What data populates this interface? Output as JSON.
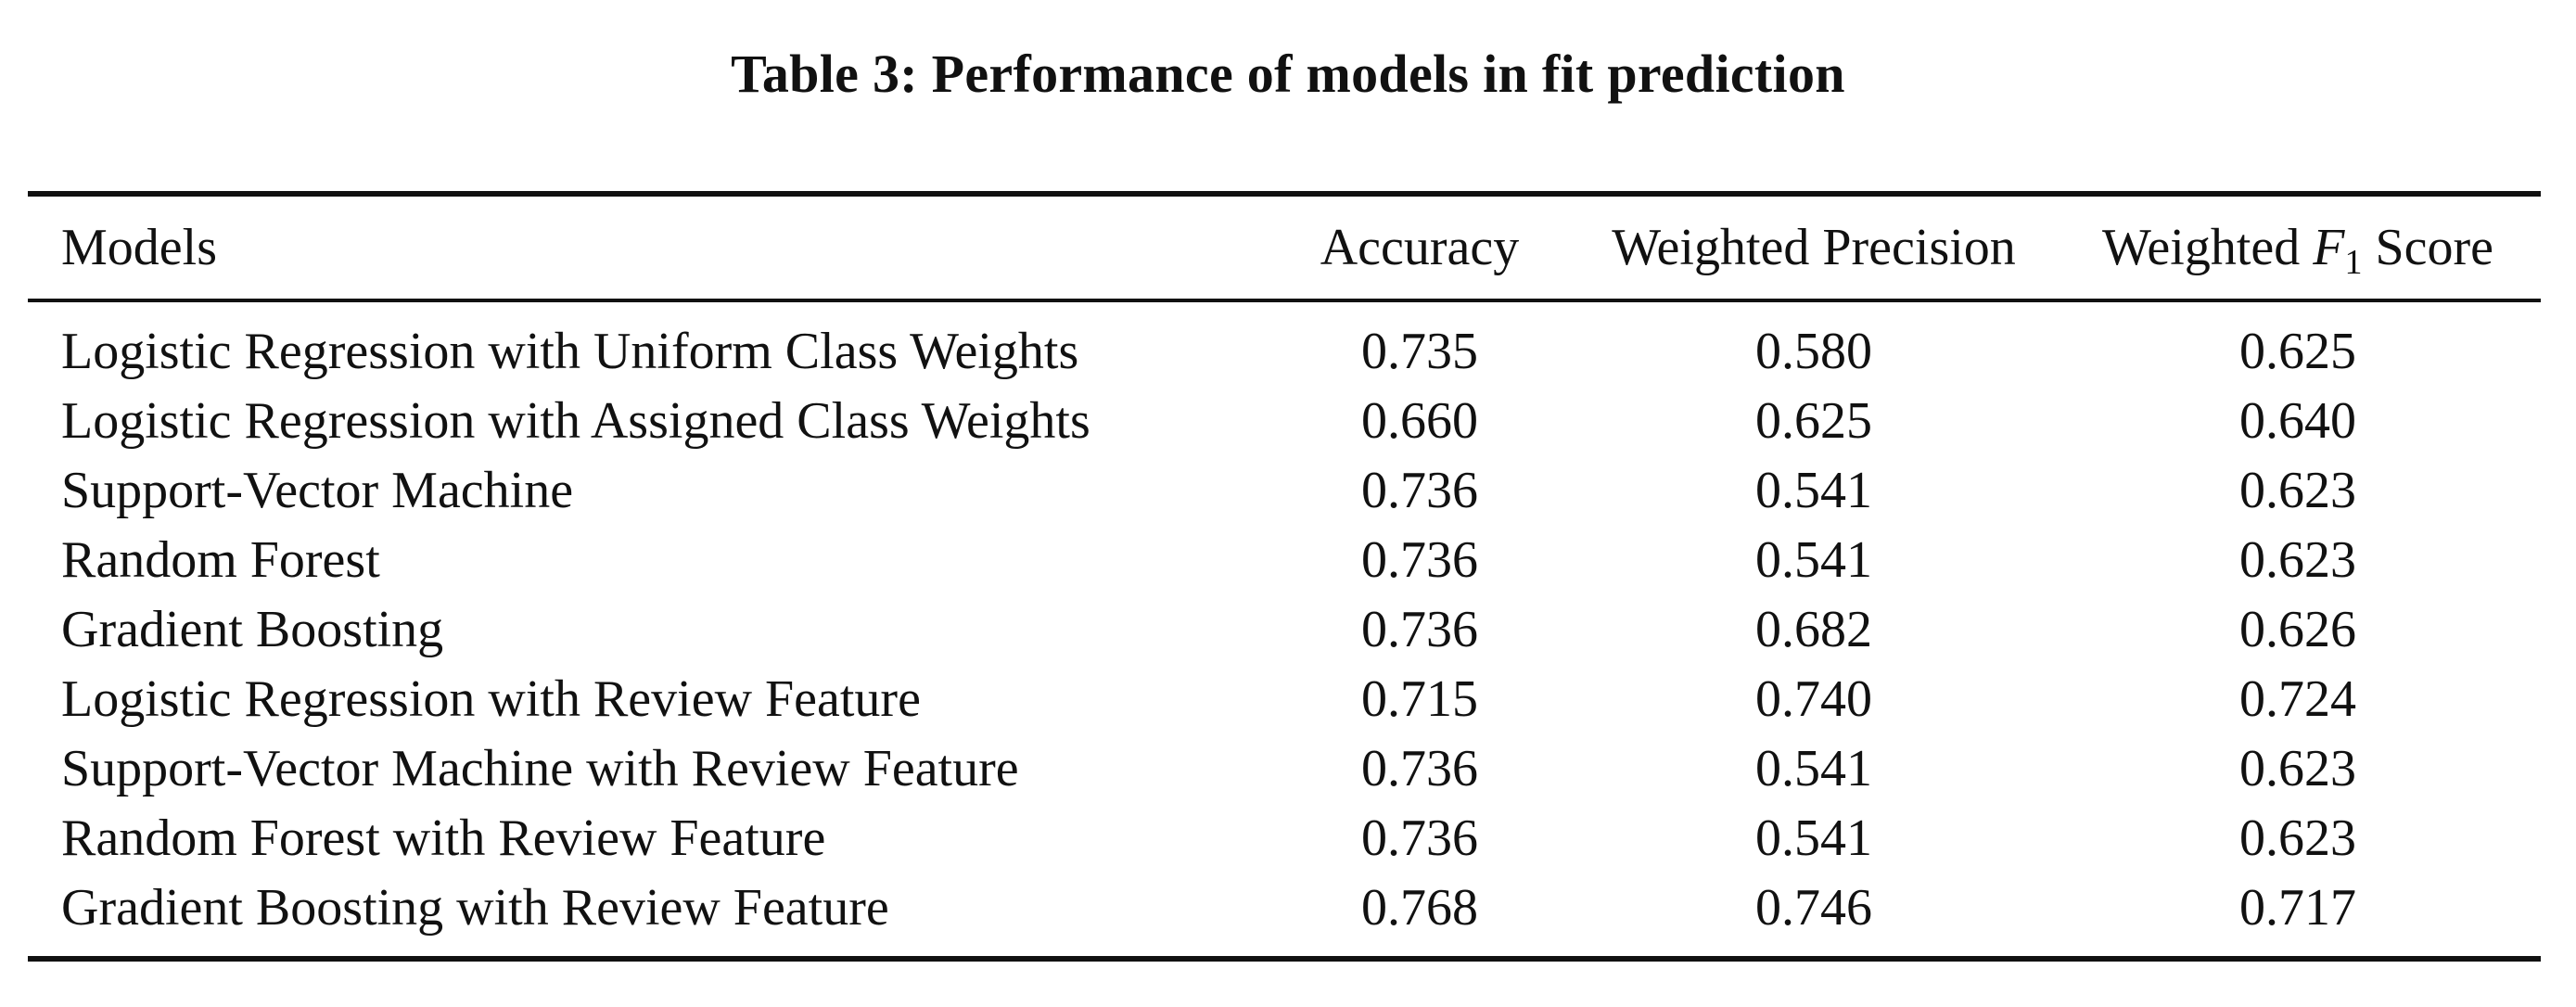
{
  "caption": "Table 3: Performance of models in fit prediction",
  "headers": {
    "models": "Models",
    "accuracy": "Accuracy",
    "precision": "Weighted Precision",
    "f1_prefix": "Weighted",
    "f1_var": "F",
    "f1_sub": "1",
    "f1_suffix": "Score"
  },
  "rows": [
    {
      "model": "Logistic Regression with Uniform Class Weights",
      "accuracy": "0.735",
      "precision": "0.580",
      "f1": "0.625"
    },
    {
      "model": "Logistic Regression with Assigned Class Weights",
      "accuracy": "0.660",
      "precision": "0.625",
      "f1": "0.640"
    },
    {
      "model": "Support-Vector Machine",
      "accuracy": "0.736",
      "precision": "0.541",
      "f1": "0.623"
    },
    {
      "model": "Random Forest",
      "accuracy": "0.736",
      "precision": "0.541",
      "f1": "0.623"
    },
    {
      "model": "Gradient Boosting",
      "accuracy": "0.736",
      "precision": "0.682",
      "f1": "0.626"
    },
    {
      "model": "Logistic Regression with Review Feature",
      "accuracy": "0.715",
      "precision": "0.740",
      "f1": "0.724"
    },
    {
      "model": "Support-Vector Machine with Review Feature",
      "accuracy": "0.736",
      "precision": "0.541",
      "f1": "0.623"
    },
    {
      "model": "Random Forest with Review Feature",
      "accuracy": "0.736",
      "precision": "0.541",
      "f1": "0.623"
    },
    {
      "model": "Gradient Boosting with Review Feature",
      "accuracy": "0.768",
      "precision": "0.746",
      "f1": "0.717"
    }
  ]
}
